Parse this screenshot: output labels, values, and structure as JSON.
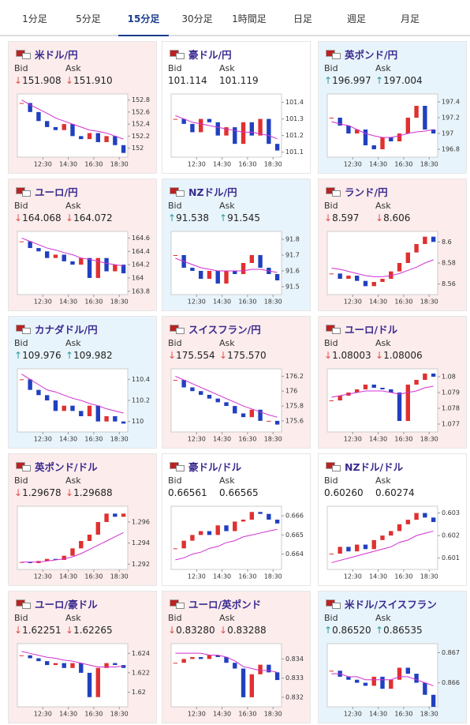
{
  "tabs": [
    "1分足",
    "5分足",
    "15分足",
    "30分足",
    "1時間足",
    "日足",
    "週足",
    "月足"
  ],
  "active_tab": 2,
  "labels": {
    "bid": "Bid",
    "ask": "Ask"
  },
  "cards": [
    {
      "name": "米ドル/円",
      "bid": "151.908",
      "ask": "151.910",
      "arrow": "↓",
      "arrow_color": "#e0504a",
      "bg": "#fcecec",
      "chart": {
        "type": "candle",
        "xlim": [
          -0.5,
          12.5
        ],
        "xticks": [
          {
            "value": 2.5,
            "label": "12:30"
          },
          {
            "value": 5.5,
            "label": "14:30"
          },
          {
            "value": 8.5,
            "label": "16:30"
          },
          {
            "value": 11.5,
            "label": "18:30"
          }
        ],
        "ylim": [
          151.85,
          152.9
        ],
        "yticks": [
          152,
          152.2,
          152.4,
          152.6,
          152.8
        ],
        "close": [
          152.75,
          152.6,
          152.45,
          152.35,
          152.3,
          152.4,
          152.2,
          152.15,
          152.25,
          152.1,
          152.2,
          152.05,
          151.92
        ],
        "ma": [
          152.8,
          152.72,
          152.65,
          152.58,
          152.5,
          152.45,
          152.4,
          152.35,
          152.3,
          152.28,
          152.25,
          152.2,
          152.15
        ]
      }
    },
    {
      "name": "豪ドル/円",
      "bid": "101.114",
      "ask": "101.119",
      "bg": "#ffffff",
      "chart": {
        "type": "candle",
        "xlim": [
          -0.5,
          12.5
        ],
        "xticks": [
          {
            "value": 2.5,
            "label": "12:30"
          },
          {
            "value": 5.5,
            "label": "14:30"
          },
          {
            "value": 8.5,
            "label": "16:30"
          },
          {
            "value": 11.5,
            "label": "18:30"
          }
        ],
        "ylim": [
          101.07,
          101.45
        ],
        "yticks": [
          101.1,
          101.2,
          101.3,
          101.4
        ],
        "close": [
          101.3,
          101.27,
          101.22,
          101.3,
          101.28,
          101.2,
          101.25,
          101.15,
          101.28,
          101.2,
          101.3,
          101.15,
          101.11
        ],
        "ma": [
          101.32,
          101.3,
          101.28,
          101.27,
          101.26,
          101.25,
          101.24,
          101.23,
          101.22,
          101.22,
          101.21,
          101.2,
          101.18
        ]
      }
    },
    {
      "name": "英ポンド/円",
      "bid": "196.997",
      "ask": "197.004",
      "arrow": "↑",
      "arrow_color": "#2a9a9a",
      "bg": "#e8f4fb",
      "chart": {
        "type": "candle",
        "xlim": [
          -0.5,
          12.5
        ],
        "xticks": [
          {
            "value": 2.5,
            "label": "12:30"
          },
          {
            "value": 5.5,
            "label": "14:30"
          },
          {
            "value": 8.5,
            "label": "16:30"
          },
          {
            "value": 11.5,
            "label": "18:30"
          }
        ],
        "ylim": [
          196.7,
          197.5
        ],
        "yticks": [
          196.8,
          197,
          197.2,
          197.4
        ],
        "close": [
          197.2,
          197.1,
          197.0,
          197.05,
          196.85,
          196.8,
          196.95,
          196.9,
          197.0,
          197.2,
          197.35,
          197.05,
          197.0
        ],
        "ma": [
          197.15,
          197.12,
          197.1,
          197.05,
          197.0,
          196.97,
          196.95,
          196.95,
          196.97,
          197.0,
          197.02,
          197.03,
          197.05
        ]
      }
    },
    {
      "name": "ユーロ/円",
      "bid": "164.068",
      "ask": "164.072",
      "arrow": "↓",
      "arrow_color": "#e0504a",
      "bg": "#fcecec",
      "chart": {
        "type": "candle",
        "xlim": [
          -0.5,
          12.5
        ],
        "xticks": [
          {
            "value": 2.5,
            "label": "12:30"
          },
          {
            "value": 5.5,
            "label": "14:30"
          },
          {
            "value": 8.5,
            "label": "16:30"
          },
          {
            "value": 11.5,
            "label": "18:30"
          }
        ],
        "ylim": [
          163.75,
          164.7
        ],
        "yticks": [
          163.8,
          164,
          164.2,
          164.4,
          164.6
        ],
        "close": [
          164.55,
          164.45,
          164.4,
          164.3,
          164.35,
          164.25,
          164.2,
          164.3,
          164.0,
          164.3,
          164.1,
          164.2,
          164.07
        ],
        "ma": [
          164.6,
          164.55,
          164.5,
          164.45,
          164.42,
          164.38,
          164.35,
          164.3,
          164.28,
          164.25,
          164.22,
          164.2,
          164.18
        ]
      }
    },
    {
      "name": "NZドル/円",
      "bid": "91.538",
      "ask": "91.545",
      "arrow": "↑",
      "arrow_color": "#2a9a9a",
      "bg": "#e8f4fb",
      "chart": {
        "type": "candle",
        "xlim": [
          -0.5,
          12.5
        ],
        "xticks": [
          {
            "value": 2.5,
            "label": "12:30"
          },
          {
            "value": 5.5,
            "label": "14:30"
          },
          {
            "value": 8.5,
            "label": "16:30"
          },
          {
            "value": 11.5,
            "label": "18:30"
          }
        ],
        "ylim": [
          91.45,
          91.85
        ],
        "yticks": [
          91.5,
          91.6,
          91.7,
          91.8
        ],
        "close": [
          91.7,
          91.62,
          91.6,
          91.55,
          91.6,
          91.52,
          91.6,
          91.58,
          91.65,
          91.7,
          91.62,
          91.58,
          91.54
        ],
        "ma": [
          91.68,
          91.66,
          91.64,
          91.62,
          91.61,
          91.6,
          91.6,
          91.6,
          91.6,
          91.61,
          91.61,
          91.6,
          91.59
        ]
      }
    },
    {
      "name": "ランド/円",
      "bid": "8.597",
      "ask": "8.606",
      "arrow": "↓",
      "arrow_color": "#e0504a",
      "bg": "#fcecec",
      "chart": {
        "type": "candle",
        "xlim": [
          -0.5,
          12.5
        ],
        "xticks": [
          {
            "value": 2.5,
            "label": "12:30"
          },
          {
            "value": 5.5,
            "label": "14:30"
          },
          {
            "value": 8.5,
            "label": "16:30"
          },
          {
            "value": 11.5,
            "label": "18:30"
          }
        ],
        "ylim": [
          8.55,
          8.61
        ],
        "yticks": [
          8.56,
          8.58,
          8.6
        ],
        "close": [
          8.57,
          8.565,
          8.568,
          8.563,
          8.558,
          8.562,
          8.565,
          8.572,
          8.58,
          8.59,
          8.598,
          8.605,
          8.6
        ],
        "ma": [
          8.575,
          8.574,
          8.572,
          8.57,
          8.568,
          8.567,
          8.567,
          8.568,
          8.57,
          8.573,
          8.576,
          8.58,
          8.583
        ]
      }
    },
    {
      "name": "カナダドル/円",
      "bid": "109.976",
      "ask": "109.982",
      "arrow": "↑",
      "arrow_color": "#2a9a9a",
      "bg": "#e8f4fb",
      "chart": {
        "type": "candle",
        "xlim": [
          -0.5,
          12.5
        ],
        "xticks": [
          {
            "value": 2.5,
            "label": "12:30"
          },
          {
            "value": 5.5,
            "label": "14:30"
          },
          {
            "value": 8.5,
            "label": "16:30"
          },
          {
            "value": 11.5,
            "label": "18:30"
          }
        ],
        "ylim": [
          109.9,
          110.5
        ],
        "yticks": [
          110,
          110.2,
          110.4
        ],
        "close": [
          110.4,
          110.3,
          110.25,
          110.2,
          110.1,
          110.15,
          110.1,
          110.05,
          110.15,
          110.0,
          110.05,
          110.0,
          109.98
        ],
        "ma": [
          110.45,
          110.4,
          110.35,
          110.3,
          110.28,
          110.25,
          110.22,
          110.2,
          110.17,
          110.15,
          110.12,
          110.1,
          110.08
        ]
      }
    },
    {
      "name": "スイスフラン/円",
      "bid": "175.554",
      "ask": "175.570",
      "arrow": "↓",
      "arrow_color": "#e0504a",
      "bg": "#fcecec",
      "chart": {
        "type": "candle",
        "xlim": [
          -0.5,
          12.5
        ],
        "xticks": [
          {
            "value": 2.5,
            "label": "12:30"
          },
          {
            "value": 5.5,
            "label": "14:30"
          },
          {
            "value": 8.5,
            "label": "16:30"
          },
          {
            "value": 11.5,
            "label": "18:30"
          }
        ],
        "ylim": [
          175.45,
          176.3
        ],
        "yticks": [
          175.6,
          175.8,
          176,
          176.2
        ],
        "close": [
          176.15,
          176.05,
          176.0,
          175.95,
          175.9,
          175.85,
          175.8,
          175.7,
          175.65,
          175.75,
          175.6,
          175.6,
          175.55
        ],
        "ma": [
          176.2,
          176.15,
          176.1,
          176.05,
          176.0,
          175.95,
          175.9,
          175.85,
          175.8,
          175.76,
          175.72,
          175.68,
          175.65
        ]
      }
    },
    {
      "name": "ユーロ/ドル",
      "bid": "1.08003",
      "ask": "1.08006",
      "arrow": "↓",
      "arrow_color": "#e0504a",
      "bg": "#fcecec",
      "chart": {
        "type": "candle",
        "xlim": [
          -0.5,
          12.5
        ],
        "xticks": [
          {
            "value": 2.5,
            "label": "12:30"
          },
          {
            "value": 5.5,
            "label": "14:30"
          },
          {
            "value": 8.5,
            "label": "16:30"
          },
          {
            "value": 11.5,
            "label": "18:30"
          }
        ],
        "ylim": [
          1.0765,
          1.0805
        ],
        "yticks": [
          1.077,
          1.078,
          1.079,
          1.08
        ],
        "close": [
          1.0785,
          1.0788,
          1.079,
          1.0792,
          1.0795,
          1.0793,
          1.0792,
          1.079,
          1.0772,
          1.0795,
          1.0798,
          1.0802,
          1.08
        ],
        "ma": [
          1.0787,
          1.0788,
          1.0789,
          1.079,
          1.0791,
          1.0791,
          1.0791,
          1.079,
          1.0789,
          1.079,
          1.0791,
          1.0793,
          1.0794
        ]
      }
    },
    {
      "name": "英ポンド/ドル",
      "bid": "1.29678",
      "ask": "1.29688",
      "arrow": "↓",
      "arrow_color": "#e0504a",
      "bg": "#fcecec",
      "chart": {
        "type": "candle",
        "xlim": [
          -0.5,
          12.5
        ],
        "xticks": [
          {
            "value": 2.5,
            "label": "12:30"
          },
          {
            "value": 5.5,
            "label": "14:30"
          },
          {
            "value": 8.5,
            "label": "16:30"
          },
          {
            "value": 11.5,
            "label": "18:30"
          }
        ],
        "ylim": [
          1.2915,
          1.2975
        ],
        "yticks": [
          1.292,
          1.294,
          1.296
        ],
        "close": [
          1.2922,
          1.2921,
          1.2923,
          1.2925,
          1.2924,
          1.2928,
          1.2935,
          1.2942,
          1.2948,
          1.296,
          1.2968,
          1.2965,
          1.2968
        ],
        "ma": [
          1.2922,
          1.2922,
          1.2922,
          1.2923,
          1.2924,
          1.2925,
          1.2927,
          1.293,
          1.2934,
          1.2938,
          1.2942,
          1.2946,
          1.295
        ]
      }
    },
    {
      "name": "豪ドル/ドル",
      "bid": "0.66561",
      "ask": "0.66565",
      "bg": "#ffffff",
      "chart": {
        "type": "candle",
        "xlim": [
          -0.5,
          12.5
        ],
        "xticks": [
          {
            "value": 2.5,
            "label": "12:30"
          },
          {
            "value": 5.5,
            "label": "14:30"
          },
          {
            "value": 8.5,
            "label": "16:30"
          },
          {
            "value": 11.5,
            "label": "18:30"
          }
        ],
        "ylim": [
          0.6632,
          0.6665
        ],
        "yticks": [
          0.664,
          0.665,
          0.666
        ],
        "close": [
          0.6643,
          0.6647,
          0.665,
          0.6652,
          0.665,
          0.6655,
          0.6652,
          0.6657,
          0.6658,
          0.6662,
          0.6661,
          0.6658,
          0.6656
        ],
        "ma": [
          0.6637,
          0.6638,
          0.664,
          0.6641,
          0.6643,
          0.6644,
          0.6646,
          0.6647,
          0.6649,
          0.665,
          0.6651,
          0.6652,
          0.6653
        ]
      }
    },
    {
      "name": "NZドル/ドル",
      "bid": "0.60260",
      "ask": "0.60274",
      "bg": "#ffffff",
      "chart": {
        "type": "candle",
        "xlim": [
          -0.5,
          12.5
        ],
        "xticks": [
          {
            "value": 2.5,
            "label": "12:30"
          },
          {
            "value": 5.5,
            "label": "14:30"
          },
          {
            "value": 8.5,
            "label": "16:30"
          },
          {
            "value": 11.5,
            "label": "18:30"
          }
        ],
        "ylim": [
          0.6005,
          0.6033
        ],
        "yticks": [
          0.601,
          0.602,
          0.603
        ],
        "close": [
          0.6012,
          0.6015,
          0.6013,
          0.6016,
          0.6014,
          0.6018,
          0.602,
          0.6022,
          0.6025,
          0.6027,
          0.603,
          0.6028,
          0.6026
        ],
        "ma": [
          0.6008,
          0.6009,
          0.601,
          0.6011,
          0.6012,
          0.6013,
          0.6014,
          0.6015,
          0.6017,
          0.6018,
          0.602,
          0.6021,
          0.6022
        ]
      }
    },
    {
      "name": "ユーロ/豪ドル",
      "bid": "1.62251",
      "ask": "1.62265",
      "arrow": "↓",
      "arrow_color": "#e0504a",
      "bg": "#fcecec",
      "chart": {
        "type": "candle",
        "xlim": [
          -0.5,
          12.5
        ],
        "xticks": [
          {
            "value": 2.5,
            "label": "12:30"
          },
          {
            "value": 5.5,
            "label": "14:30"
          },
          {
            "value": 8.5,
            "label": "16:30"
          },
          {
            "value": 11.5,
            "label": "18:30"
          }
        ],
        "ylim": [
          1.6185,
          1.625
        ],
        "yticks": [
          1.62,
          1.622,
          1.624
        ],
        "close": [
          1.6238,
          1.6235,
          1.6232,
          1.6228,
          1.623,
          1.6225,
          1.623,
          1.622,
          1.6195,
          1.6225,
          1.623,
          1.6228,
          1.6225
        ],
        "ma": [
          1.6242,
          1.624,
          1.6238,
          1.6236,
          1.6235,
          1.6233,
          1.6232,
          1.623,
          1.6228,
          1.6226,
          1.6226,
          1.6226,
          1.6227
        ]
      }
    },
    {
      "name": "ユーロ/英ポンド",
      "bid": "0.83280",
      "ask": "0.83288",
      "arrow": "↓",
      "arrow_color": "#e0504a",
      "bg": "#fcecec",
      "chart": {
        "type": "candle",
        "xlim": [
          -0.5,
          12.5
        ],
        "xticks": [
          {
            "value": 2.5,
            "label": "12:30"
          },
          {
            "value": 5.5,
            "label": "14:30"
          },
          {
            "value": 8.5,
            "label": "16:30"
          },
          {
            "value": 11.5,
            "label": "18:30"
          }
        ],
        "ylim": [
          0.8315,
          0.8348
        ],
        "yticks": [
          0.832,
          0.833,
          0.834
        ],
        "close": [
          0.8338,
          0.834,
          0.8341,
          0.834,
          0.8342,
          0.8341,
          0.8338,
          0.8335,
          0.832,
          0.8332,
          0.8337,
          0.8333,
          0.8329
        ],
        "ma": [
          0.8343,
          0.8343,
          0.8343,
          0.8343,
          0.8342,
          0.8342,
          0.8341,
          0.8339,
          0.8336,
          0.8335,
          0.8334,
          0.8334,
          0.8333
        ]
      }
    },
    {
      "name": "米ドル/スイスフラン",
      "bid": "0.86520",
      "ask": "0.86535",
      "arrow": "↑",
      "arrow_color": "#2a9a9a",
      "bg": "#e8f4fb",
      "chart": {
        "type": "candle",
        "xlim": [
          -0.5,
          12.5
        ],
        "xticks": [
          {
            "value": 2.5,
            "label": "12:30"
          },
          {
            "value": 5.5,
            "label": "14:30"
          },
          {
            "value": 8.5,
            "label": "16:30"
          },
          {
            "value": 11.5,
            "label": "18:30"
          }
        ],
        "ylim": [
          0.8652,
          0.8673
        ],
        "yticks": [
          0.866,
          0.867
        ],
        "close": [
          0.8664,
          0.8662,
          0.8661,
          0.866,
          0.8659,
          0.8662,
          0.8658,
          0.8661,
          0.8665,
          0.8663,
          0.866,
          0.8656,
          0.8652
        ],
        "ma": [
          0.8663,
          0.8663,
          0.8662,
          0.8662,
          0.8661,
          0.8661,
          0.8661,
          0.8661,
          0.8662,
          0.8662,
          0.8661,
          0.866,
          0.8659
        ]
      }
    }
  ]
}
